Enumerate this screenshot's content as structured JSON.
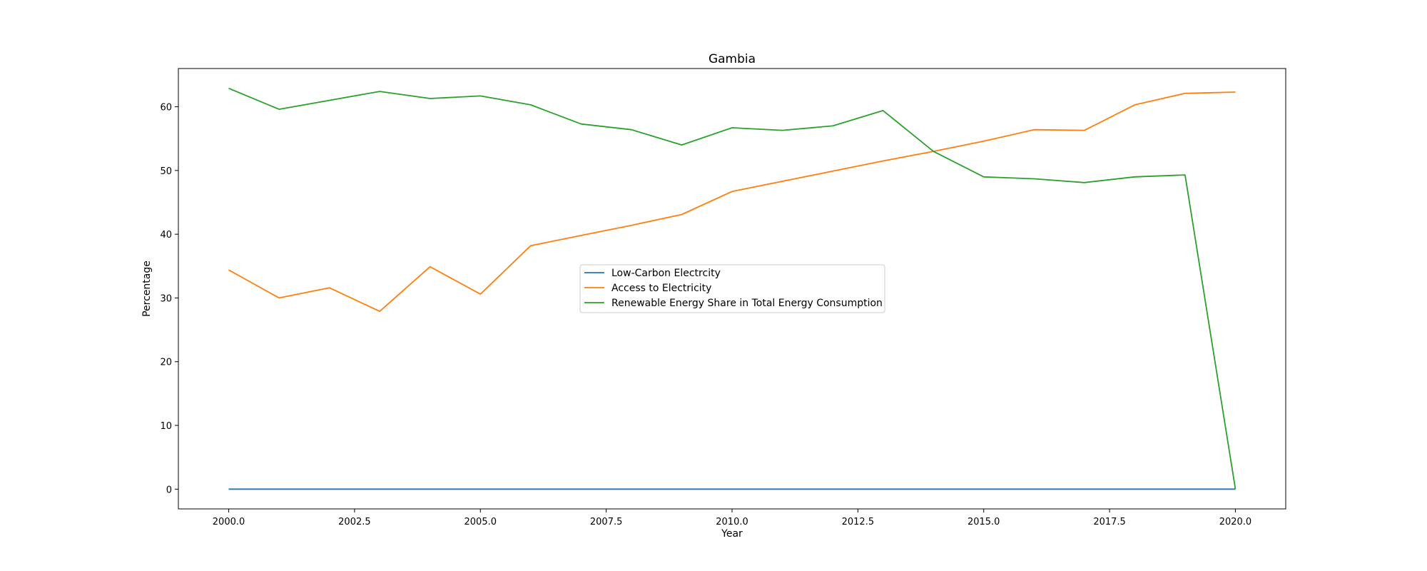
{
  "chart_data": {
    "type": "line",
    "title": "Gambia",
    "xlabel": "Year",
    "ylabel": "Percentage",
    "xlim": [
      1999.0,
      2021.0
    ],
    "ylim": [
      -3.1,
      66.0
    ],
    "x_ticks": [
      2000.0,
      2002.5,
      2005.0,
      2007.5,
      2010.0,
      2012.5,
      2015.0,
      2017.5,
      2020.0
    ],
    "x_tick_labels": [
      "2000.0",
      "2002.5",
      "2005.0",
      "2007.5",
      "2010.0",
      "2012.5",
      "2015.0",
      "2017.5",
      "2020.0"
    ],
    "y_ticks": [
      0,
      10,
      20,
      30,
      40,
      50,
      60
    ],
    "y_tick_labels": [
      "0",
      "10",
      "20",
      "30",
      "40",
      "50",
      "60"
    ],
    "grid": false,
    "legend_position": "center",
    "x": [
      2000,
      2001,
      2002,
      2003,
      2004,
      2005,
      2006,
      2007,
      2008,
      2009,
      2010,
      2011,
      2012,
      2013,
      2014,
      2015,
      2016,
      2017,
      2018,
      2019,
      2020
    ],
    "series": [
      {
        "name": "Low-Carbon Electrcity",
        "color": "#1f77b4",
        "values": [
          0,
          0,
          0,
          0,
          0,
          0,
          0,
          0,
          0,
          0,
          0,
          0,
          0,
          0,
          0,
          0,
          0,
          0,
          0,
          0,
          0
        ]
      },
      {
        "name": "Access to Electricity",
        "color": "#ff7f0e",
        "values": [
          34.4,
          30.0,
          31.6,
          27.9,
          34.9,
          30.6,
          38.2,
          39.8,
          41.4,
          43.1,
          46.7,
          48.3,
          49.9,
          51.5,
          53.0,
          54.6,
          56.4,
          56.3,
          60.3,
          62.1,
          62.3
        ]
      },
      {
        "name": "Renewable Energy Share in Total Energy Consumption",
        "color": "#2ca02c",
        "values": [
          62.9,
          59.6,
          61.0,
          62.4,
          61.3,
          61.7,
          60.3,
          57.3,
          56.4,
          54.0,
          56.7,
          56.3,
          57.0,
          59.4,
          53.0,
          49.0,
          48.7,
          48.1,
          49.0,
          49.3,
          0
        ]
      }
    ]
  }
}
